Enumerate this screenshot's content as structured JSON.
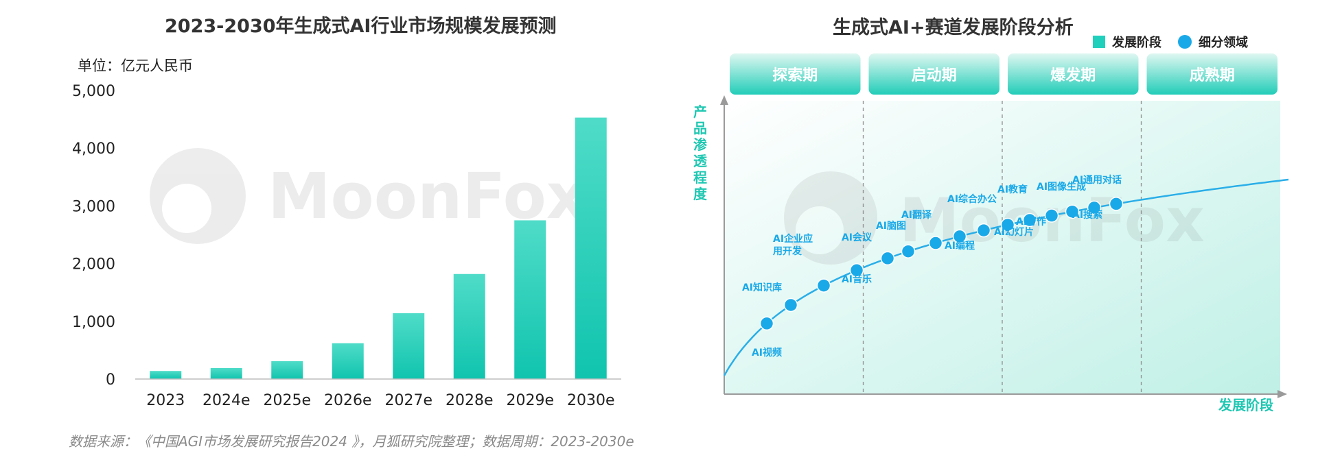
{
  "left_chart": {
    "title": "2023-2030年生成式AI行业市场规模发展预测",
    "unit": "单位：亿元人民币",
    "watermark": "MoonFox",
    "chart_data": {
      "type": "bar",
      "title": "2023-2030年生成式AI行业市场规模发展预测",
      "ylabel": "单位：亿元人民币",
      "categories": [
        "2023",
        "2024e",
        "2025e",
        "2026e",
        "2027e",
        "2028e",
        "2029e",
        "2030e"
      ],
      "values": [
        140,
        190,
        310,
        620,
        1140,
        1820,
        2750,
        4530
      ],
      "ylim": [
        0,
        5000
      ],
      "yticks": [
        "0",
        "1,000",
        "2,000",
        "3,000",
        "4,000",
        "5,000"
      ],
      "grid": false,
      "bar_color_top": "#4fdcc8",
      "bar_color_bottom": "#10c4ae"
    }
  },
  "right_chart": {
    "title": "生成式AI+赛道发展阶段分析",
    "legend": [
      {
        "label": "发展阶段",
        "color": "#1fd0bd"
      },
      {
        "label": "细分领域",
        "color": "#1aa9e8"
      }
    ],
    "stages": [
      "探索期",
      "启动期",
      "爆发期",
      "成熟期"
    ],
    "y_axis_label": "产品渗透程度",
    "x_axis_label": "发展阶段",
    "watermark": "MoonFox",
    "curve_color": "#2aaee8",
    "chart_data": {
      "type": "scatter",
      "title": "生成式AI+赛道发展阶段分析",
      "xlabel": "发展阶段",
      "ylabel": "产品渗透程度",
      "legend": [
        "发展阶段",
        "细分领域"
      ],
      "stage_bands": [
        "探索期",
        "启动期",
        "爆发期",
        "成熟期"
      ],
      "points": [
        {
          "label": "AI视频",
          "stage": "探索期"
        },
        {
          "label": "AI知识库",
          "stage": "探索期"
        },
        {
          "label": "AI企业应用开发",
          "stage": "探索期"
        },
        {
          "label": "AI音乐",
          "stage": "启动期"
        },
        {
          "label": "AI会议",
          "stage": "启动期"
        },
        {
          "label": "AI脑图",
          "stage": "启动期"
        },
        {
          "label": "AI翻译",
          "stage": "启动期"
        },
        {
          "label": "AI编程",
          "stage": "启动期"
        },
        {
          "label": "AI综合办公",
          "stage": "启动期"
        },
        {
          "label": "AI幻灯片",
          "stage": "爆发期"
        },
        {
          "label": "AI教育",
          "stage": "爆发期"
        },
        {
          "label": "AI写作",
          "stage": "爆发期"
        },
        {
          "label": "AI图像生成",
          "stage": "爆发期"
        },
        {
          "label": "AI搜索",
          "stage": "爆发期"
        },
        {
          "label": "AI通用对话",
          "stage": "爆发期"
        }
      ]
    }
  },
  "source_note": "数据来源：《中国AGI市场发展研究报告2024 》，月狐研究院整理；数据周期：2023-2030e"
}
